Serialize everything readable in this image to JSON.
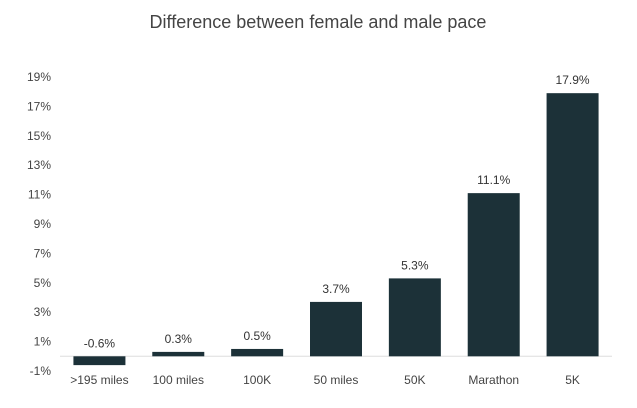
{
  "chart_data": {
    "type": "bar",
    "title": "Difference between female and male pace",
    "xlabel": "",
    "ylabel": "",
    "categories": [
      ">195 miles",
      "100 miles",
      "100K",
      "50 miles",
      "50K",
      "Marathon",
      "5K"
    ],
    "values": [
      -0.6,
      0.3,
      0.5,
      3.7,
      5.3,
      11.1,
      17.9
    ],
    "data_labels": [
      "-0.6%",
      "0.3%",
      "0.5%",
      "3.7%",
      "5.3%",
      "11.1%",
      "17.9%"
    ],
    "ylim": [
      -1,
      19
    ],
    "yticks": [
      -1,
      1,
      3,
      5,
      7,
      9,
      11,
      13,
      15,
      17,
      19
    ],
    "ytick_labels": [
      "-1%",
      "1%",
      "3%",
      "5%",
      "7%",
      "9%",
      "11%",
      "13%",
      "15%",
      "17%",
      "19%"
    ],
    "bar_color": "#1c3138",
    "grid": false,
    "legend": "none"
  }
}
